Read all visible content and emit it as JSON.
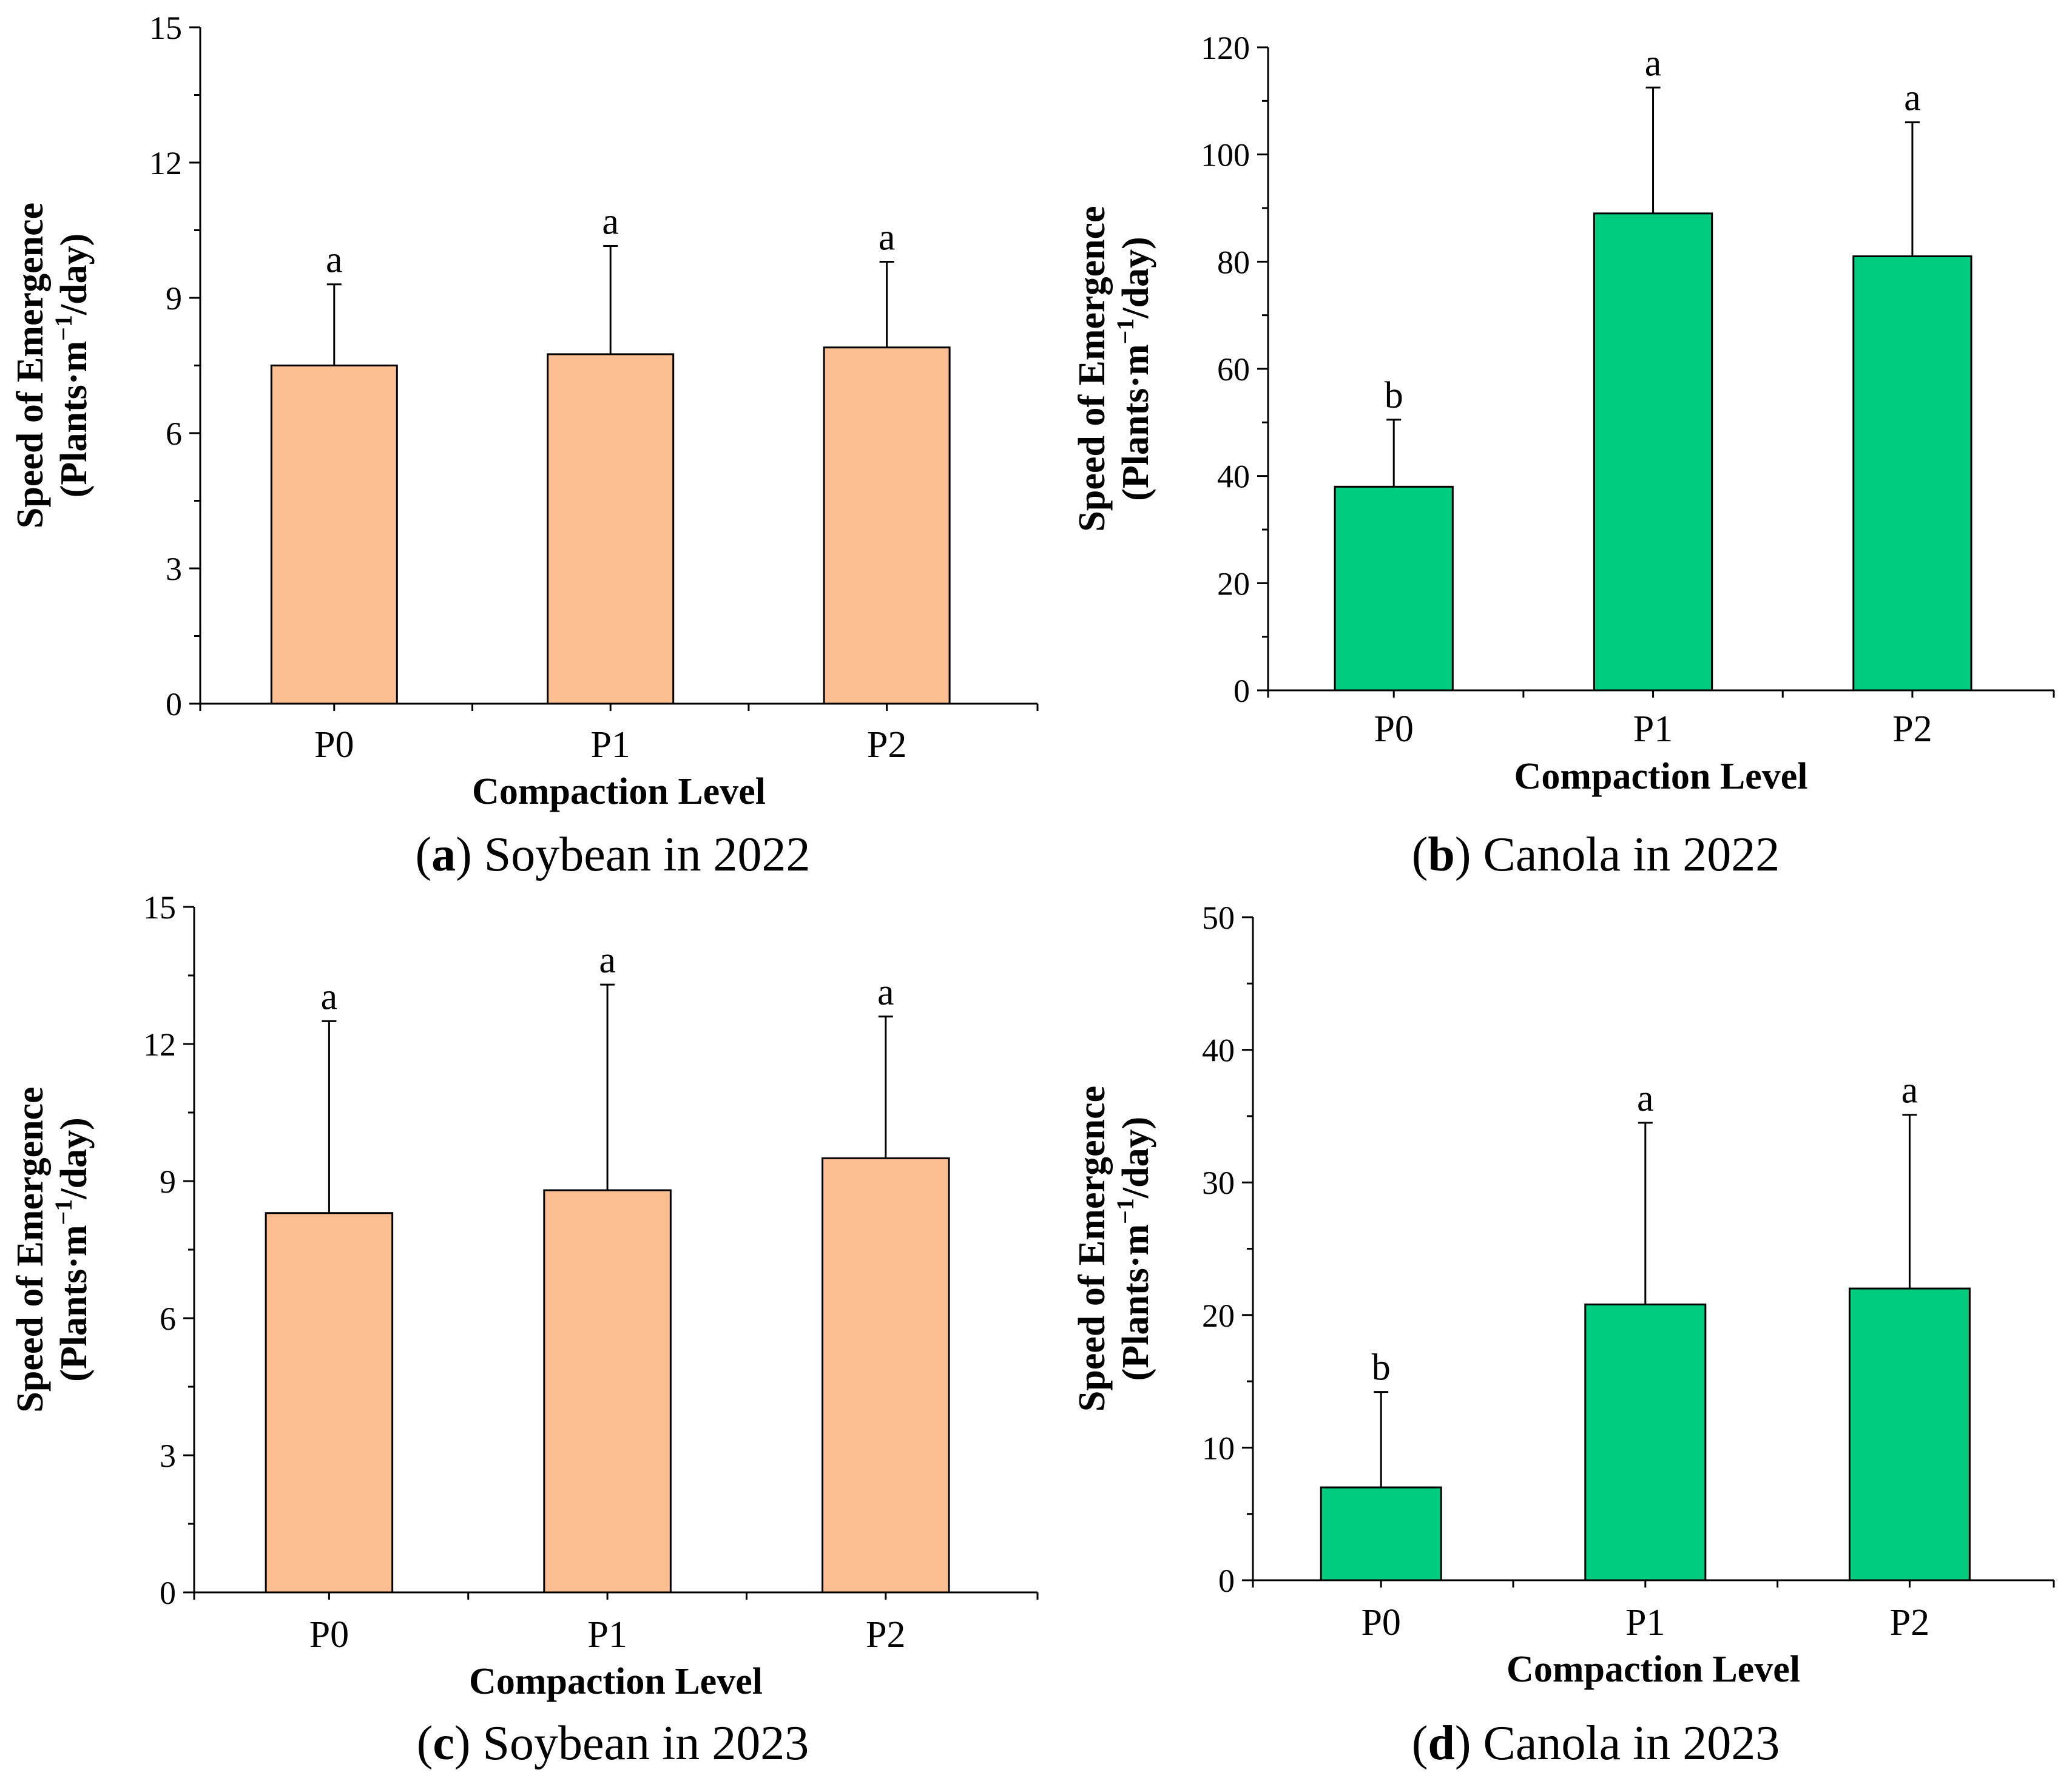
{
  "figure": {
    "captions": [
      {
        "letter": "a",
        "open": "(",
        "close": ")",
        "text": " Soybean in 2022"
      },
      {
        "letter": "b",
        "open": "(",
        "close": ")",
        "text": " Canola in 2022"
      },
      {
        "letter": "c",
        "open": "(",
        "close": ")",
        "text": " Soybean in 2023"
      },
      {
        "letter": "d",
        "open": "(",
        "close": ")",
        "text": " Canola in 2023"
      }
    ]
  },
  "colors": {
    "soybean": "#FDBF91",
    "canola": "#00CC80",
    "axis": "#000000"
  },
  "chart_data": [
    {
      "id": "a",
      "type": "bar",
      "categories": [
        "P0",
        "P1",
        "P2"
      ],
      "values": [
        7.5,
        7.75,
        7.9
      ],
      "errors": [
        1.8,
        2.4,
        1.9
      ],
      "significance": [
        "a",
        "a",
        "a"
      ],
      "xlabel": "Compaction Level",
      "ylabel_line1": "Speed of Emergence",
      "ylabel_line2_prefix": "(Plants·m",
      "ylabel_superscript": "−1",
      "ylabel_line2_suffix": "/day)",
      "ylim": [
        0,
        15
      ],
      "yticks": [
        0,
        3,
        6,
        9,
        12,
        15
      ],
      "color": "soybean"
    },
    {
      "id": "b",
      "type": "bar",
      "categories": [
        "P0",
        "P1",
        "P2"
      ],
      "values": [
        38,
        89,
        81
      ],
      "errors": [
        12.5,
        23.5,
        25
      ],
      "significance": [
        "b",
        "a",
        "a"
      ],
      "xlabel": "Compaction Level",
      "ylabel_line1": "Speed of Emergence",
      "ylabel_line2_prefix": "(Plants·m",
      "ylabel_superscript": "−1",
      "ylabel_line2_suffix": "/day)",
      "ylim": [
        0,
        120
      ],
      "yticks": [
        0,
        20,
        40,
        60,
        80,
        100,
        120
      ],
      "color": "canola"
    },
    {
      "id": "c",
      "type": "bar",
      "categories": [
        "P0",
        "P1",
        "P2"
      ],
      "values": [
        8.3,
        8.8,
        9.5
      ],
      "errors": [
        4.2,
        4.5,
        3.1
      ],
      "significance": [
        "a",
        "a",
        "a"
      ],
      "xlabel": "Compaction Level",
      "ylabel_line1": "Speed of Emergence",
      "ylabel_line2_prefix": "(Plants·m",
      "ylabel_superscript": "−1",
      "ylabel_line2_suffix": "/day)",
      "ylim": [
        0,
        15
      ],
      "yticks": [
        0,
        3,
        6,
        9,
        12,
        15
      ],
      "color": "soybean"
    },
    {
      "id": "d",
      "type": "bar",
      "categories": [
        "P0",
        "P1",
        "P2"
      ],
      "values": [
        7,
        20.8,
        22
      ],
      "errors": [
        7.2,
        13.7,
        13.1
      ],
      "significance": [
        "b",
        "a",
        "a"
      ],
      "xlabel": "Compaction Level",
      "ylabel_line1": "Speed of Emergence",
      "ylabel_line2_prefix": "(Plants·m",
      "ylabel_superscript": "−1",
      "ylabel_line2_suffix": "/day)",
      "ylim": [
        0,
        50
      ],
      "yticks": [
        0,
        10,
        20,
        30,
        40,
        50
      ],
      "color": "canola"
    }
  ]
}
